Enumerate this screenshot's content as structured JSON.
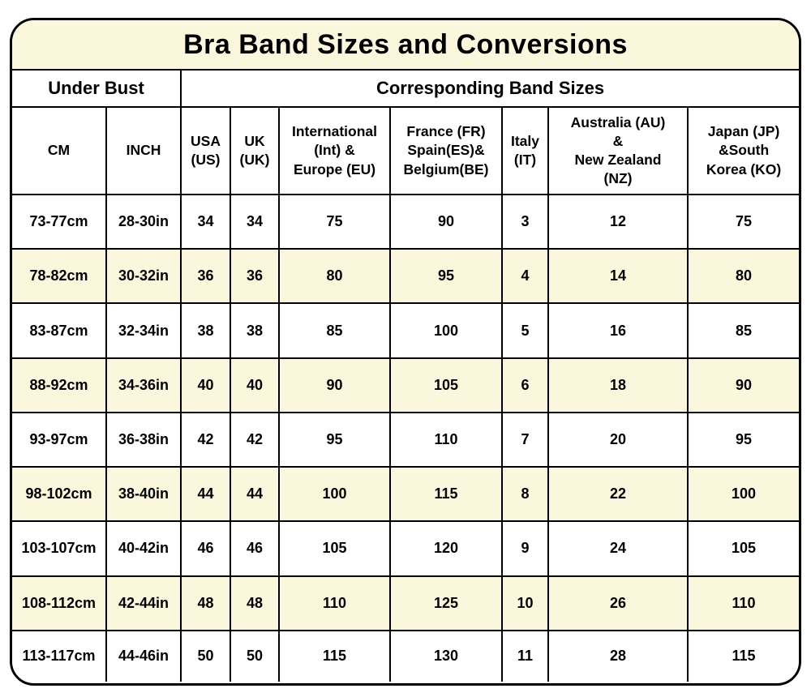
{
  "title": "Bra Band Sizes and Conversions",
  "colors": {
    "cream_highlight": "#FBF7DC",
    "border": "#000000",
    "text": "#000000",
    "background": "#FFFFFF"
  },
  "table": {
    "group_headers": [
      {
        "label": "Under Bust",
        "colspan": 2
      },
      {
        "label": "Corresponding Band Sizes",
        "colspan": 7
      }
    ],
    "columns": [
      {
        "label": "CM"
      },
      {
        "label": "INCH"
      },
      {
        "label": "USA\n(US)"
      },
      {
        "label": "UK\n(UK)"
      },
      {
        "label": "International\n(Int) &\nEurope (EU)"
      },
      {
        "label": "France (FR)\nSpain(ES)&\nBelgium(BE)"
      },
      {
        "label": "Italy\n(IT)"
      },
      {
        "label": "Australia (AU)\n&\nNew Zealand\n(NZ)"
      },
      {
        "label": "Japan (JP)\n&South\nKorea (KO)"
      }
    ]
  },
  "chart_data": {
    "type": "table",
    "title": "Bra Band Sizes and Conversions",
    "group_headers": [
      "Under Bust",
      "Corresponding Band Sizes"
    ],
    "columns": [
      "CM",
      "INCH",
      "USA (US)",
      "UK (UK)",
      "International (Int) & Europe (EU)",
      "France (FR) Spain(ES)& Belgium(BE)",
      "Italy (IT)",
      "Australia (AU) & New Zealand (NZ)",
      "Japan (JP) &South Korea (KO)"
    ],
    "rows": [
      [
        "73-77cm",
        "28-30in",
        "34",
        "34",
        "75",
        "90",
        "3",
        "12",
        "75"
      ],
      [
        "78-82cm",
        "30-32in",
        "36",
        "36",
        "80",
        "95",
        "4",
        "14",
        "80"
      ],
      [
        "83-87cm",
        "32-34in",
        "38",
        "38",
        "85",
        "100",
        "5",
        "16",
        "85"
      ],
      [
        "88-92cm",
        "34-36in",
        "40",
        "40",
        "90",
        "105",
        "6",
        "18",
        "90"
      ],
      [
        "93-97cm",
        "36-38in",
        "42",
        "42",
        "95",
        "110",
        "7",
        "20",
        "95"
      ],
      [
        "98-102cm",
        "38-40in",
        "44",
        "44",
        "100",
        "115",
        "8",
        "22",
        "100"
      ],
      [
        "103-107cm",
        "40-42in",
        "46",
        "46",
        "105",
        "120",
        "9",
        "24",
        "105"
      ],
      [
        "108-112cm",
        "42-44in",
        "48",
        "48",
        "110",
        "125",
        "10",
        "26",
        "110"
      ],
      [
        "113-117cm",
        "44-46in",
        "50",
        "50",
        "115",
        "130",
        "11",
        "28",
        "115"
      ]
    ],
    "layout_hints": {
      "highlighted_rows_zero_indexed": [
        1,
        3,
        5,
        7
      ],
      "highlight_color": "#FBF7DC",
      "grid": true
    }
  }
}
